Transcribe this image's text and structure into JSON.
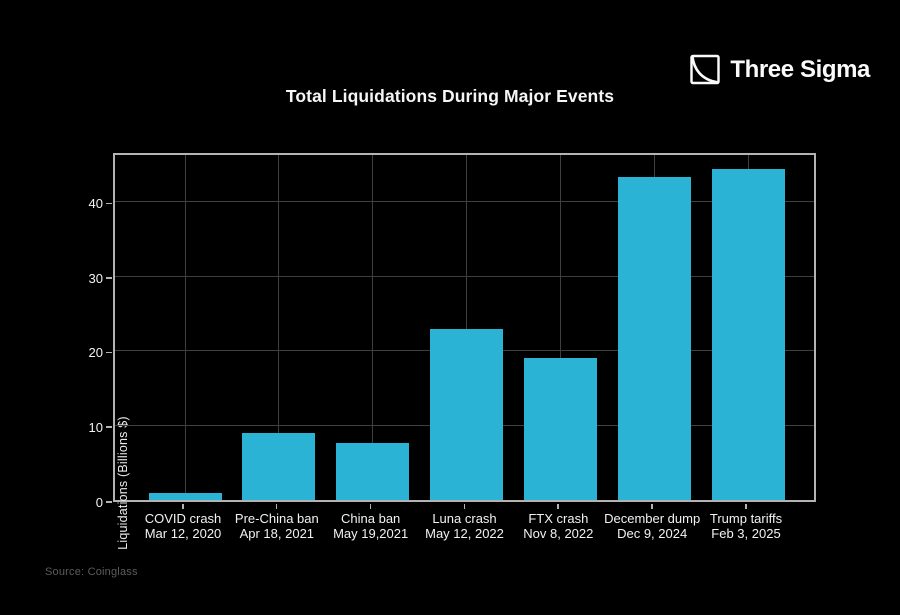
{
  "logo": {
    "text": "Three Sigma"
  },
  "source": {
    "text": "Source: Coinglass"
  },
  "colors": {
    "background": "#000000",
    "bar": "#2bb3d5",
    "grid": "#3f3f3f",
    "frame": "#b3b3b3",
    "text": "#f2f2f2",
    "muted": "#5c5c5c"
  },
  "chart_data": {
    "type": "bar",
    "title": "Total Liquidations During Major Events",
    "xlabel": "",
    "ylabel": "Liquidations (Billions $)",
    "categories": [
      "COVID crash",
      "Pre-China ban",
      "China ban",
      "Luna crash",
      "FTX crash",
      "December dump",
      "Trump tariffs"
    ],
    "category_dates": [
      "Mar 12, 2020",
      "Apr 18, 2021",
      "May 19,2021",
      "May 12, 2022",
      "Nov 8, 2022",
      "Dec 9, 2024",
      "Feb 3, 2025"
    ],
    "values": [
      1.0,
      9.0,
      7.7,
      22.9,
      19.0,
      43.3,
      44.4
    ],
    "ylim": [
      0,
      46.8
    ],
    "yticks": [
      0,
      10,
      20,
      30,
      40
    ],
    "grid": true,
    "legend": false,
    "bar_color": "#2bb3d5"
  }
}
